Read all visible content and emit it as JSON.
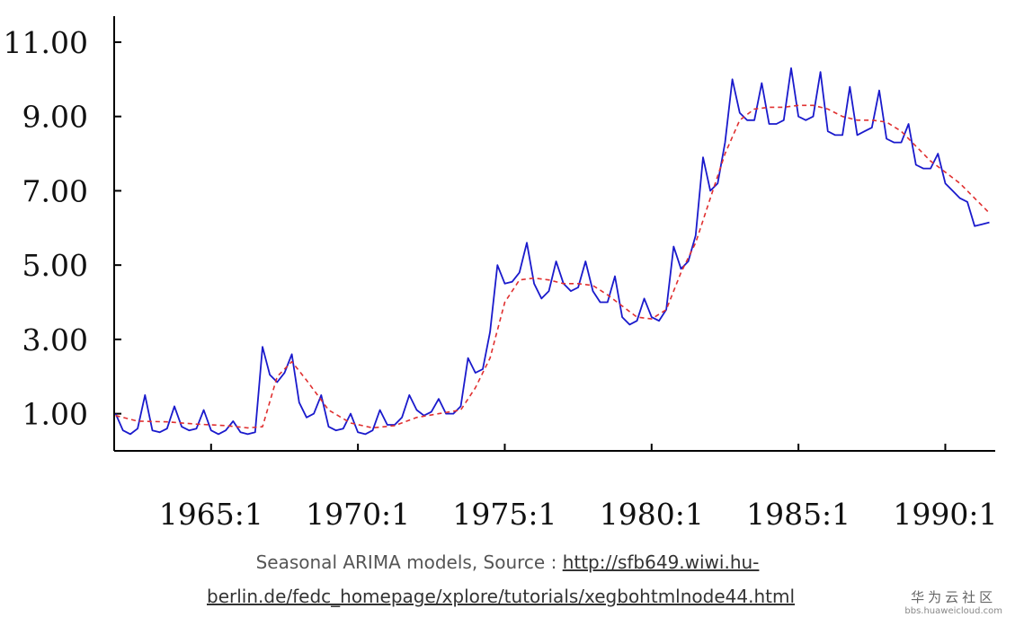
{
  "chart_data": {
    "type": "line",
    "title": "",
    "xlabel": "",
    "ylabel": "",
    "xlim": [
      1961.7,
      1991.7
    ],
    "ylim": [
      0.0,
      11.7
    ],
    "y_ticks": [
      "1.00",
      "3.00",
      "5.00",
      "7.00",
      "9.00",
      "11.00"
    ],
    "x_ticks": [
      {
        "label": "1965:1",
        "x": 1965
      },
      {
        "label": "1970:1",
        "x": 1970
      },
      {
        "label": "1975:1",
        "x": 1975
      },
      {
        "label": "1980:1",
        "x": 1980
      },
      {
        "label": "1985:1",
        "x": 1985
      },
      {
        "label": "1990:1",
        "x": 1990
      }
    ],
    "grid": false,
    "legend": "none",
    "series": [
      {
        "color": "#1a1acc",
        "style": "solid",
        "x": [
          1961.75,
          1962.0,
          1962.25,
          1962.5,
          1962.75,
          1963.0,
          1963.25,
          1963.5,
          1963.75,
          1964.0,
          1964.25,
          1964.5,
          1964.75,
          1965.0,
          1965.25,
          1965.5,
          1965.75,
          1966.0,
          1966.25,
          1966.5,
          1966.75,
          1967.0,
          1967.25,
          1967.5,
          1967.75,
          1968.0,
          1968.25,
          1968.5,
          1968.75,
          1969.0,
          1969.25,
          1969.5,
          1969.75,
          1970.0,
          1970.25,
          1970.5,
          1970.75,
          1971.0,
          1971.25,
          1971.5,
          1971.75,
          1972.0,
          1972.25,
          1972.5,
          1972.75,
          1973.0,
          1973.25,
          1973.5,
          1973.75,
          1974.0,
          1974.25,
          1974.5,
          1974.75,
          1975.0,
          1975.25,
          1975.5,
          1975.75,
          1976.0,
          1976.25,
          1976.5,
          1976.75,
          1977.0,
          1977.25,
          1977.5,
          1977.75,
          1978.0,
          1978.25,
          1978.5,
          1978.75,
          1979.0,
          1979.25,
          1979.5,
          1979.75,
          1980.0,
          1980.25,
          1980.5,
          1980.75,
          1981.0,
          1981.25,
          1981.5,
          1981.75,
          1982.0,
          1982.25,
          1982.5,
          1982.75,
          1983.0,
          1983.25,
          1983.5,
          1983.75,
          1984.0,
          1984.25,
          1984.5,
          1984.75,
          1985.0,
          1985.25,
          1985.5,
          1985.75,
          1986.0,
          1986.25,
          1986.5,
          1986.75,
          1987.0,
          1987.25,
          1987.5,
          1987.75,
          1988.0,
          1988.25,
          1988.5,
          1988.75,
          1989.0,
          1989.25,
          1989.5,
          1989.75,
          1990.0,
          1990.25,
          1990.5,
          1990.75,
          1991.0,
          1991.25,
          1991.5
        ],
        "values": [
          1.0,
          0.55,
          0.45,
          0.6,
          1.5,
          0.55,
          0.5,
          0.6,
          1.2,
          0.65,
          0.55,
          0.6,
          1.1,
          0.55,
          0.45,
          0.55,
          0.8,
          0.5,
          0.45,
          0.5,
          2.8,
          2.05,
          1.85,
          2.1,
          2.6,
          1.3,
          0.9,
          1.0,
          1.5,
          0.65,
          0.55,
          0.6,
          1.0,
          0.5,
          0.45,
          0.55,
          1.1,
          0.7,
          0.7,
          0.9,
          1.5,
          1.1,
          0.95,
          1.05,
          1.4,
          1.0,
          1.0,
          1.2,
          2.5,
          2.1,
          2.2,
          3.2,
          5.0,
          4.5,
          4.55,
          4.8,
          5.6,
          4.5,
          4.1,
          4.3,
          5.1,
          4.5,
          4.3,
          4.4,
          5.1,
          4.3,
          4.0,
          4.0,
          4.7,
          3.6,
          3.4,
          3.5,
          4.1,
          3.6,
          3.5,
          3.8,
          5.5,
          4.9,
          5.1,
          5.8,
          7.9,
          7.0,
          7.2,
          8.3,
          10.0,
          9.1,
          8.9,
          8.9,
          9.9,
          8.8,
          8.8,
          8.9,
          10.3,
          9.0,
          8.9,
          9.0,
          10.2,
          8.6,
          8.5,
          8.5,
          9.8,
          8.5,
          8.6,
          8.7,
          9.7,
          8.4,
          8.3,
          8.3,
          8.8,
          7.7,
          7.6,
          7.6,
          8.0,
          7.2,
          7.0,
          6.8,
          6.7,
          6.05,
          6.1,
          6.15
        ]
      },
      {
        "color": "#e03030",
        "style": "dashed",
        "x": [
          1961.75,
          1962.5,
          1963.5,
          1964.5,
          1965.5,
          1966.25,
          1966.75,
          1967.25,
          1967.75,
          1968.25,
          1969.0,
          1969.75,
          1970.5,
          1971.25,
          1972.0,
          1972.75,
          1973.5,
          1974.0,
          1974.5,
          1975.0,
          1975.5,
          1976.0,
          1976.5,
          1977.0,
          1977.5,
          1978.0,
          1978.5,
          1979.0,
          1979.5,
          1980.0,
          1980.5,
          1981.0,
          1981.5,
          1982.0,
          1982.5,
          1983.0,
          1983.5,
          1984.0,
          1984.5,
          1985.0,
          1985.5,
          1986.0,
          1986.5,
          1987.0,
          1987.5,
          1988.0,
          1988.5,
          1989.0,
          1989.5,
          1990.0,
          1990.5,
          1991.0,
          1991.5
        ],
        "values": [
          0.95,
          0.8,
          0.78,
          0.72,
          0.68,
          0.62,
          0.65,
          2.0,
          2.4,
          1.9,
          1.1,
          0.75,
          0.62,
          0.68,
          0.9,
          1.0,
          1.1,
          1.7,
          2.5,
          4.0,
          4.6,
          4.65,
          4.6,
          4.5,
          4.5,
          4.45,
          4.2,
          3.9,
          3.6,
          3.55,
          3.8,
          4.8,
          5.6,
          6.8,
          8.0,
          8.9,
          9.2,
          9.25,
          9.25,
          9.3,
          9.3,
          9.2,
          9.0,
          8.9,
          8.9,
          8.85,
          8.6,
          8.2,
          7.8,
          7.5,
          7.2,
          6.8,
          6.4
        ]
      }
    ]
  },
  "caption": {
    "line1_text": "Seasonal ARIMA models, Source : ",
    "line1_link": "http://sfb649.wiwi.hu-",
    "line2_link": "berlin.de/fedc_homepage/xplore/tutorials/xegbohtmlnode44.html"
  },
  "watermark": {
    "title": "华为云社区",
    "url": "bbs.huaweicloud.com"
  }
}
